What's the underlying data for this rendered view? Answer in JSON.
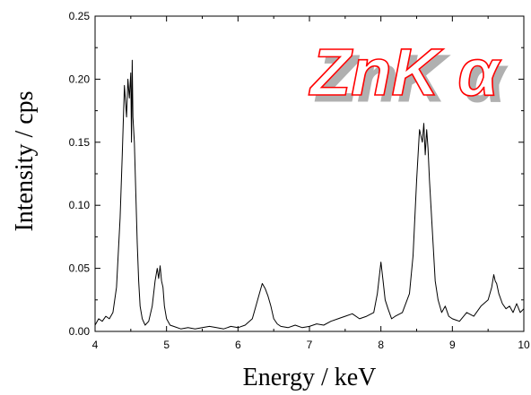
{
  "chart_data": {
    "type": "line",
    "title": "",
    "xlabel": "Energy / keV",
    "ylabel": "Intensity / cps",
    "xlim": [
      4,
      10
    ],
    "ylim": [
      0,
      0.25
    ],
    "x_ticks": [
      "4",
      "5",
      "6",
      "7",
      "8",
      "9",
      "10"
    ],
    "y_ticks": [
      "0.00",
      "0.05",
      "0.10",
      "0.15",
      "0.20",
      "0.25"
    ],
    "grid": false,
    "legend": "none",
    "annotation": {
      "text": "ZnK α",
      "stroke_color": "#ff0000",
      "shadow_color": "#b0b0b0"
    },
    "series": [
      {
        "x": [
          4.0,
          4.05,
          4.1,
          4.15,
          4.2,
          4.25,
          4.3,
          4.35,
          4.38,
          4.41,
          4.44,
          4.46,
          4.48,
          4.5,
          4.51,
          4.52,
          4.53,
          4.54,
          4.55,
          4.57,
          4.59,
          4.61,
          4.63,
          4.66,
          4.7,
          4.75,
          4.8,
          4.84,
          4.87,
          4.89,
          4.91,
          4.93,
          4.95,
          4.97,
          5.0,
          5.05,
          5.1,
          5.2,
          5.3,
          5.4,
          5.5,
          5.6,
          5.7,
          5.8,
          5.9,
          6.0,
          6.1,
          6.2,
          6.25,
          6.3,
          6.34,
          6.38,
          6.42,
          6.46,
          6.5,
          6.55,
          6.6,
          6.7,
          6.8,
          6.9,
          7.0,
          7.1,
          7.2,
          7.3,
          7.4,
          7.5,
          7.6,
          7.7,
          7.8,
          7.9,
          7.95,
          8.0,
          8.03,
          8.06,
          8.1,
          8.15,
          8.2,
          8.3,
          8.4,
          8.45,
          8.5,
          8.54,
          8.58,
          8.6,
          8.62,
          8.64,
          8.66,
          8.68,
          8.7,
          8.73,
          8.76,
          8.8,
          8.85,
          8.9,
          8.95,
          9.0,
          9.1,
          9.2,
          9.3,
          9.4,
          9.5,
          9.55,
          9.58,
          9.6,
          9.62,
          9.65,
          9.7,
          9.75,
          9.8,
          9.85,
          9.9,
          9.95,
          10.0
        ],
        "y": [
          0.005,
          0.01,
          0.008,
          0.012,
          0.01,
          0.015,
          0.035,
          0.09,
          0.14,
          0.195,
          0.17,
          0.2,
          0.185,
          0.205,
          0.15,
          0.215,
          0.17,
          0.16,
          0.15,
          0.11,
          0.07,
          0.04,
          0.02,
          0.01,
          0.005,
          0.008,
          0.02,
          0.04,
          0.05,
          0.042,
          0.052,
          0.04,
          0.035,
          0.02,
          0.01,
          0.005,
          0.004,
          0.002,
          0.003,
          0.002,
          0.003,
          0.004,
          0.003,
          0.002,
          0.004,
          0.003,
          0.005,
          0.01,
          0.02,
          0.03,
          0.038,
          0.034,
          0.028,
          0.02,
          0.01,
          0.006,
          0.004,
          0.003,
          0.005,
          0.003,
          0.004,
          0.006,
          0.005,
          0.008,
          0.01,
          0.012,
          0.014,
          0.01,
          0.012,
          0.015,
          0.03,
          0.055,
          0.04,
          0.025,
          0.018,
          0.01,
          0.012,
          0.015,
          0.03,
          0.06,
          0.12,
          0.16,
          0.15,
          0.165,
          0.14,
          0.16,
          0.145,
          0.12,
          0.1,
          0.07,
          0.04,
          0.025,
          0.015,
          0.02,
          0.012,
          0.01,
          0.008,
          0.015,
          0.012,
          0.02,
          0.025,
          0.035,
          0.045,
          0.04,
          0.038,
          0.03,
          0.022,
          0.018,
          0.02,
          0.015,
          0.022,
          0.015,
          0.018
        ]
      }
    ]
  }
}
